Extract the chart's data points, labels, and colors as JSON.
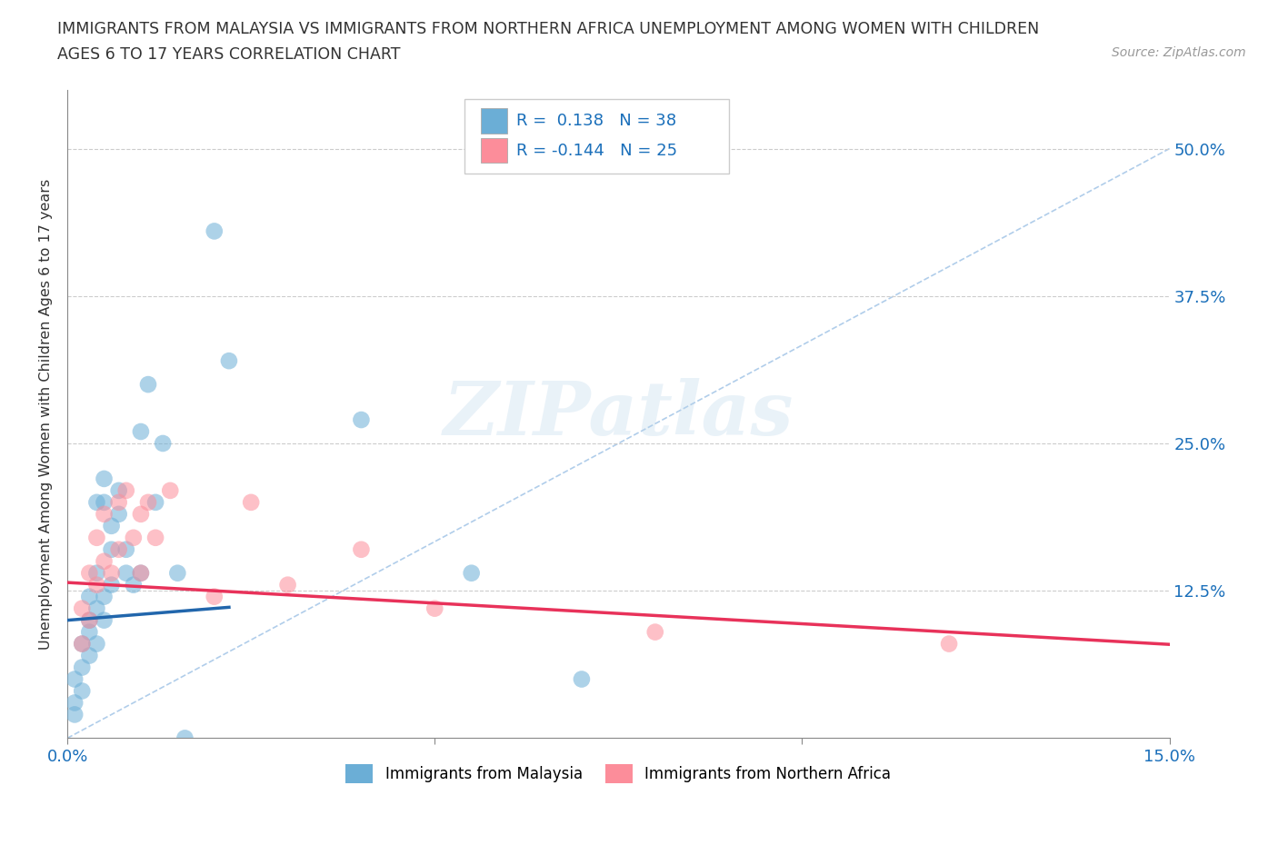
{
  "title_line1": "IMMIGRANTS FROM MALAYSIA VS IMMIGRANTS FROM NORTHERN AFRICA UNEMPLOYMENT AMONG WOMEN WITH CHILDREN",
  "title_line2": "AGES 6 TO 17 YEARS CORRELATION CHART",
  "source": "Source: ZipAtlas.com",
  "ylabel": "Unemployment Among Women with Children Ages 6 to 17 years",
  "xlim": [
    0.0,
    0.15
  ],
  "ylim": [
    0.0,
    0.55
  ],
  "ytick_positions": [
    0.0,
    0.125,
    0.25,
    0.375,
    0.5
  ],
  "ytick_labels": [
    "",
    "12.5%",
    "25.0%",
    "37.5%",
    "50.0%"
  ],
  "xtick_positions": [
    0.0,
    0.05,
    0.1,
    0.15
  ],
  "xtick_labels": [
    "0.0%",
    "",
    "",
    "15.0%"
  ],
  "R_malaysia": 0.138,
  "N_malaysia": 38,
  "R_n_africa": -0.144,
  "N_n_africa": 25,
  "malaysia_color": "#6baed6",
  "n_africa_color": "#fc8d9a",
  "malaysia_line_color": "#2166ac",
  "n_africa_line_color": "#e8325a",
  "dash_line_color": "#a8c8e8",
  "watermark": "ZIPatlas",
  "malaysia_x": [
    0.001,
    0.001,
    0.001,
    0.002,
    0.002,
    0.002,
    0.003,
    0.003,
    0.003,
    0.003,
    0.004,
    0.004,
    0.004,
    0.004,
    0.005,
    0.005,
    0.005,
    0.005,
    0.006,
    0.006,
    0.006,
    0.007,
    0.007,
    0.008,
    0.008,
    0.009,
    0.01,
    0.01,
    0.011,
    0.012,
    0.013,
    0.015,
    0.016,
    0.02,
    0.022,
    0.04,
    0.055,
    0.07
  ],
  "malaysia_y": [
    0.02,
    0.03,
    0.05,
    0.04,
    0.06,
    0.08,
    0.07,
    0.09,
    0.1,
    0.12,
    0.08,
    0.11,
    0.14,
    0.2,
    0.1,
    0.12,
    0.2,
    0.22,
    0.13,
    0.16,
    0.18,
    0.19,
    0.21,
    0.14,
    0.16,
    0.13,
    0.14,
    0.26,
    0.3,
    0.2,
    0.25,
    0.14,
    0.0,
    0.43,
    0.32,
    0.27,
    0.14,
    0.05
  ],
  "n_africa_x": [
    0.002,
    0.002,
    0.003,
    0.003,
    0.004,
    0.004,
    0.005,
    0.005,
    0.006,
    0.007,
    0.007,
    0.008,
    0.009,
    0.01,
    0.01,
    0.011,
    0.012,
    0.014,
    0.02,
    0.025,
    0.03,
    0.04,
    0.05,
    0.08,
    0.12
  ],
  "n_africa_y": [
    0.08,
    0.11,
    0.1,
    0.14,
    0.13,
    0.17,
    0.15,
    0.19,
    0.14,
    0.16,
    0.2,
    0.21,
    0.17,
    0.14,
    0.19,
    0.2,
    0.17,
    0.21,
    0.12,
    0.2,
    0.13,
    0.16,
    0.11,
    0.09,
    0.08
  ]
}
